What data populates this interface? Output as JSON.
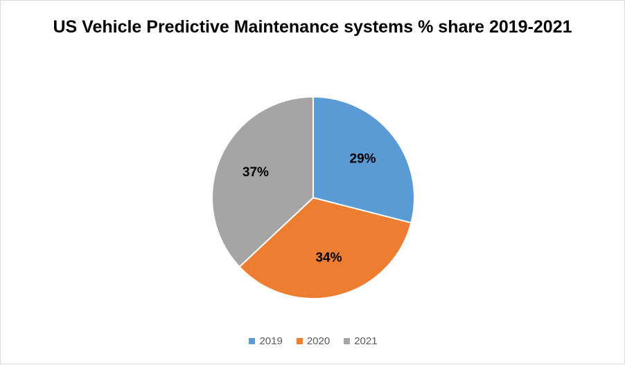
{
  "chart_data": {
    "type": "pie",
    "title": "US Vehicle Predictive Maintenance systems % share 2019-2021",
    "categories": [
      "2019",
      "2020",
      "2021"
    ],
    "values": [
      29,
      34,
      37
    ],
    "labels": [
      "29%",
      "34%",
      "37%"
    ],
    "colors": [
      "#5B9BD5",
      "#ED7D31",
      "#A5A5A5"
    ],
    "legend_position": "bottom"
  }
}
